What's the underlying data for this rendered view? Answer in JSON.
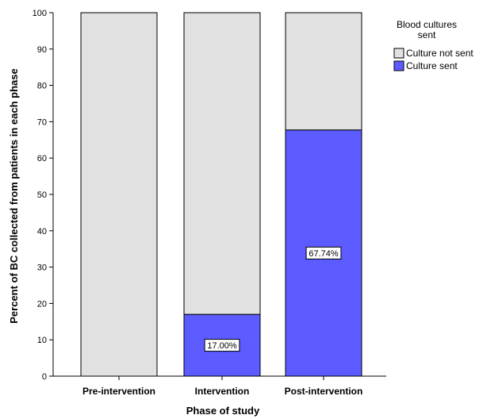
{
  "chart_data": {
    "type": "bar",
    "stacked": true,
    "categories": [
      "Pre-intervention",
      "Intervention",
      "Post-intervention"
    ],
    "series": [
      {
        "name": "Culture sent",
        "values": [
          0,
          17.0,
          67.74
        ],
        "color": "#5b5bff"
      },
      {
        "name": "Culture not sent",
        "values": [
          100,
          83.0,
          32.26
        ],
        "color": "#e1e1e1"
      }
    ],
    "data_labels": [
      "",
      "17.00%",
      "67.74%"
    ],
    "xlabel": "Phase of study",
    "ylabel": "Percent of BC collected from patients in each phase",
    "ylim": [
      0,
      100
    ],
    "yticks": [
      0,
      10,
      20,
      30,
      40,
      50,
      60,
      70,
      80,
      90,
      100
    ],
    "legend": {
      "title_lines": [
        "Blood cultures",
        "sent"
      ],
      "entries": [
        "Culture not sent",
        "Culture sent"
      ],
      "placement": "top-right"
    },
    "grid": false
  }
}
